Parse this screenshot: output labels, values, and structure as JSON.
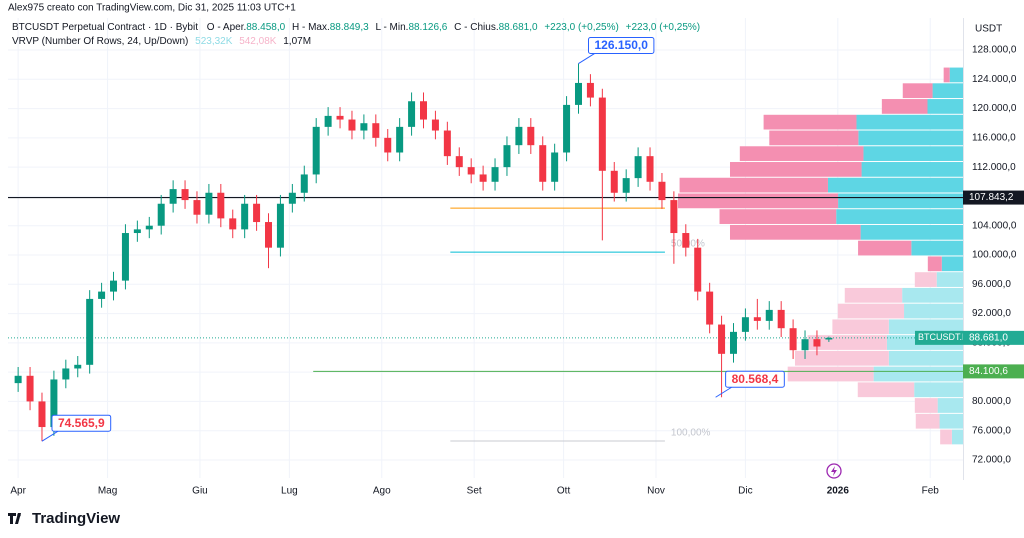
{
  "header": {
    "note": "Alex975 creato con TradingView.com, Dic 31, 2025 11:03 UTC+1",
    "symbol": "BTCUSDT Perpetual Contract · 1D · Bybit",
    "ohlc": [
      {
        "key": "O - Aper.",
        "value": "88.458,0"
      },
      {
        "key": "H - Max.",
        "value": "88.849,3"
      },
      {
        "key": "L - Min.",
        "value": "88.126,6"
      },
      {
        "key": "C - Chius.",
        "value": "88.681,0"
      }
    ],
    "changes": [
      "+223,0 (+0,25%)",
      "+223,0 (+0,25%)"
    ],
    "indicator": "VRVP (Number Of Rows, 24, Up/Down)",
    "indicator_values": [
      "523,32K",
      "542,08K",
      "1,07M"
    ],
    "brand": "TradingView"
  },
  "chart_data": {
    "type": "candlestick",
    "y_axis_label": "USDT",
    "up_color": "#089981",
    "down_color": "#f23645",
    "x": [
      0,
      4,
      8,
      12,
      16,
      20,
      24,
      28,
      32,
      36,
      40,
      44,
      48,
      52,
      56,
      60,
      64,
      68,
      72,
      76,
      80,
      84,
      88,
      92,
      96,
      100,
      104,
      108,
      112,
      116,
      120,
      124,
      128,
      132,
      136,
      140,
      144,
      148,
      152,
      156,
      160,
      164,
      168,
      172,
      176,
      180,
      184,
      188,
      192,
      196,
      200,
      204,
      208,
      212,
      216,
      220,
      224,
      228,
      232,
      236,
      240,
      244,
      248,
      252,
      256,
      260,
      264,
      268,
      272
    ],
    "open": [
      82500,
      83500,
      80000,
      76500,
      83000,
      84500,
      85000,
      94000,
      95000,
      96500,
      103000,
      103500,
      104000,
      107000,
      109000,
      107500,
      105500,
      108500,
      105000,
      103500,
      107000,
      104500,
      101000,
      107000,
      108500,
      111000,
      117500,
      119000,
      118500,
      117000,
      118000,
      116000,
      114000,
      117500,
      121000,
      118500,
      117000,
      113500,
      112000,
      111000,
      110000,
      112000,
      115000,
      117500,
      115000,
      110000,
      114000,
      120500,
      123500,
      121500,
      111500,
      108500,
      110500,
      113500,
      110000,
      107500,
      103000,
      101000,
      95000,
      90500,
      86500,
      89500,
      91500,
      91000,
      92500,
      90000,
      87000,
      88500,
      88458
    ],
    "high": [
      84700,
      84700,
      81200,
      84200,
      85700,
      86200,
      95200,
      96200,
      97700,
      104200,
      104700,
      105200,
      108200,
      110200,
      110200,
      108700,
      109700,
      109700,
      106200,
      108200,
      108200,
      105700,
      108200,
      109700,
      112200,
      118700,
      120200,
      120200,
      119700,
      119200,
      119200,
      117200,
      118700,
      122200,
      122200,
      119700,
      118200,
      114700,
      113200,
      112200,
      113200,
      116200,
      118700,
      118700,
      116200,
      115200,
      121700,
      126150,
      124700,
      122700,
      112700,
      111700,
      114700,
      114700,
      111200,
      108700,
      104200,
      102200,
      96200,
      91700,
      90700,
      92700,
      94000,
      93700,
      93700,
      91200,
      89700,
      89700,
      88849.3
    ],
    "low": [
      81300,
      78800,
      74565.9,
      75300,
      81800,
      83300,
      83800,
      92800,
      93800,
      95300,
      101800,
      102300,
      102800,
      105800,
      106300,
      104300,
      104300,
      103800,
      102300,
      102300,
      103300,
      98200,
      99800,
      105800,
      107300,
      109800,
      116300,
      117300,
      115800,
      115800,
      114800,
      112800,
      112800,
      116300,
      117300,
      115800,
      112300,
      110800,
      109800,
      108800,
      108800,
      110800,
      113800,
      113800,
      108800,
      108800,
      112800,
      119300,
      120300,
      102000,
      107300,
      107300,
      109300,
      108800,
      106300,
      98800,
      99800,
      93800,
      89300,
      80568.4,
      85300,
      88300,
      89800,
      89800,
      88800,
      85800,
      85800,
      86300,
      88126.6
    ],
    "close": [
      83500,
      80000,
      76500,
      83000,
      84500,
      85000,
      94000,
      95000,
      96500,
      103000,
      103500,
      104000,
      107000,
      109000,
      107500,
      105500,
      108500,
      105000,
      103500,
      107000,
      104500,
      101000,
      107000,
      108500,
      111000,
      117500,
      119000,
      118500,
      117000,
      118000,
      116000,
      114000,
      117500,
      121000,
      118500,
      117000,
      113500,
      112000,
      111000,
      110000,
      112000,
      115000,
      117500,
      115000,
      110000,
      114000,
      120500,
      123500,
      121500,
      111500,
      108500,
      110500,
      113500,
      110000,
      107500,
      103000,
      101000,
      95000,
      90500,
      86500,
      89500,
      91500,
      91000,
      92500,
      90000,
      87000,
      88500,
      87500,
      88681
    ],
    "xlim": [
      -3.4,
      317
    ],
    "ylim": [
      69540,
      132370
    ],
    "grid": true,
    "xticks": [
      {
        "value": 0,
        "label": "Apr"
      },
      {
        "value": 30,
        "label": "Mag"
      },
      {
        "value": 61,
        "label": "Giu"
      },
      {
        "value": 91,
        "label": "Lug"
      },
      {
        "value": 122,
        "label": "Ago"
      },
      {
        "value": 153,
        "label": "Set"
      },
      {
        "value": 183,
        "label": "Ott"
      },
      {
        "value": 214,
        "label": "Nov"
      },
      {
        "value": 244,
        "label": "Dic"
      },
      {
        "value": 275,
        "label": "2026"
      },
      {
        "value": 306,
        "label": "Feb"
      }
    ],
    "yticks": [
      {
        "value": 72000,
        "label": "72.000,0"
      },
      {
        "value": 76000,
        "label": "76.000,0"
      },
      {
        "value": 80000,
        "label": "80.000,0"
      },
      {
        "value": 84000,
        "label": "84.000,0"
      },
      {
        "value": 88000,
        "label": "88.000,0"
      },
      {
        "value": 92000,
        "label": "92.000,0"
      },
      {
        "value": 96000,
        "label": "96.000,0"
      },
      {
        "value": 100000,
        "label": "100.000,0"
      },
      {
        "value": 104000,
        "label": "104.000,0"
      },
      {
        "value": 108000,
        "label": "108.000,0"
      },
      {
        "value": 112000,
        "label": "112.000,0"
      },
      {
        "value": 116000,
        "label": "116.000,0"
      },
      {
        "value": 120000,
        "label": "120.000,0"
      },
      {
        "value": 124000,
        "label": "124.000,0"
      },
      {
        "value": 128000,
        "label": "128.000,0"
      }
    ],
    "levels": [
      {
        "value": 107843.2,
        "label": "107.843,2",
        "color": "#131722",
        "label_position": "axis"
      },
      {
        "value": 106400,
        "color": "#ff9800",
        "x": [
          145,
          217
        ]
      },
      {
        "value": 100400,
        "color": "#00bcd4",
        "x": [
          145,
          217
        ],
        "label": "50,00%",
        "label_position": "line"
      },
      {
        "value": 74600,
        "color": "#c9cbd1",
        "x": [
          145,
          217
        ],
        "label": "100,00%",
        "label_position": "line"
      },
      {
        "value": 84100.6,
        "label": "84.100,6",
        "color": "#4caf50",
        "x": [
          99,
          317
        ],
        "label_position": "axis"
      }
    ],
    "current_price": {
      "symbol": "BTCUSDT.P",
      "value": 88681,
      "label": "88.681,0",
      "color": "#22ab94"
    },
    "annotations": [
      {
        "x": 188,
        "y": 126150,
        "label": "126.150,0",
        "color": "#2962ff"
      },
      {
        "x": 234,
        "y": 80568.4,
        "label": "80.568,4",
        "color": "#f23645"
      },
      {
        "x": 8,
        "y": 74565.9,
        "label": "74.565,9",
        "color": "#f23645"
      }
    ],
    "volume_profile": {
      "bins": [
        74000,
        76150,
        78300,
        80450,
        82600,
        84750,
        86900,
        89050,
        91200,
        93350,
        95500,
        97650,
        99800,
        101950,
        104100,
        106250,
        108400,
        110550,
        112700,
        114850,
        117000,
        119150,
        121300,
        123450,
        125600
      ],
      "up": [
        3.5,
        7.4,
        8,
        15.4,
        28.2,
        23.4,
        24,
        23.4,
        18.6,
        19.2,
        8.3,
        6.7,
        16.3,
        32.3,
        40,
        39.4,
        42.6,
        32,
        31.4,
        33,
        33.6,
        11.2,
        9.6,
        4.2
      ],
      "down": [
        3.7,
        7.5,
        7.2,
        17.8,
        27.1,
        29.6,
        25,
        17.8,
        20.9,
        18.1,
        6.9,
        4.4,
        16.8,
        41.2,
        36.8,
        50.5,
        46.8,
        41.5,
        39,
        28.1,
        29.3,
        14.4,
        9.4,
        1.9
      ],
      "up_colors": [
        "#a8e8ef",
        "#a8e8ef",
        "#a8e8ef",
        "#a8e8ef",
        "#a8e8ef",
        "#a8e8ef",
        "#a8e8ef",
        "#a8e8ef",
        "#a8e8ef",
        "#a8e8ef",
        "#a8e8ef",
        "#5ed6e4",
        "#5ed6e4",
        "#5ed6e4",
        "#5ed6e4",
        "#5ed6e4",
        "#5ed6e4",
        "#5ed6e4",
        "#5ed6e4",
        "#5ed6e4",
        "#5ed6e4",
        "#5ed6e4",
        "#5ed6e4",
        "#5ed6e4"
      ],
      "down_colors": [
        "#f9c9da",
        "#f9c9da",
        "#f9c9da",
        "#f9c9da",
        "#f9c9da",
        "#f9c9da",
        "#f9c9da",
        "#f9c9da",
        "#f9c9da",
        "#f9c9da",
        "#f9c9da",
        "#f48fb1",
        "#f48fb1",
        "#f48fb1",
        "#f48fb1",
        "#f48fb1",
        "#f48fb1",
        "#f48fb1",
        "#f48fb1",
        "#f48fb1",
        "#f48fb1",
        "#f48fb1",
        "#f48fb1",
        "#f48fb1"
      ]
    }
  }
}
